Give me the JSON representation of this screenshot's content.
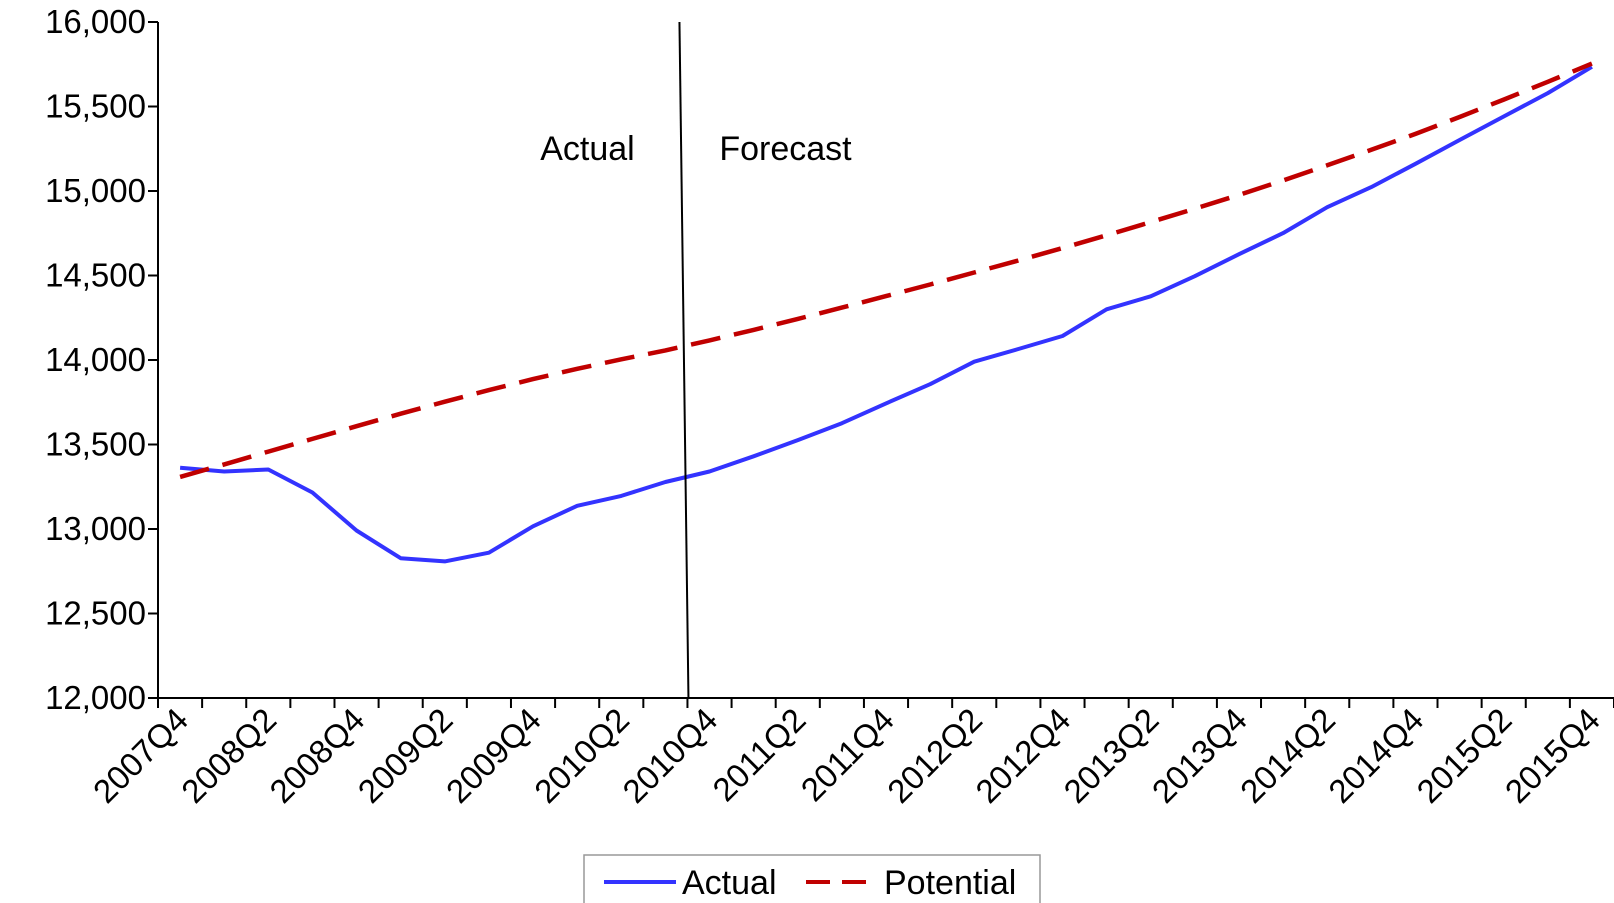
{
  "chart_data": {
    "type": "line",
    "title": "",
    "xlabel": "",
    "ylabel": "",
    "ylim": [
      12000,
      16000
    ],
    "yticks": [
      12000,
      12500,
      13000,
      13500,
      14000,
      14500,
      15000,
      15500,
      16000
    ],
    "ytick_labels": [
      "12,000",
      "12,500",
      "13,000",
      "13,500",
      "14,000",
      "14,500",
      "15,000",
      "15,500",
      "16,000"
    ],
    "x": [
      "2007Q4",
      "2008Q1",
      "2008Q2",
      "2008Q3",
      "2008Q4",
      "2009Q1",
      "2009Q2",
      "2009Q3",
      "2009Q4",
      "2010Q1",
      "2010Q2",
      "2010Q3",
      "2010Q4",
      "2011Q1",
      "2011Q2",
      "2011Q3",
      "2011Q4",
      "2012Q1",
      "2012Q2",
      "2012Q3",
      "2012Q4",
      "2013Q1",
      "2013Q2",
      "2013Q3",
      "2013Q4",
      "2014Q1",
      "2014Q2",
      "2014Q3",
      "2014Q4",
      "2015Q1",
      "2015Q2",
      "2015Q3",
      "2015Q4"
    ],
    "xtick_labels": [
      "2007Q4",
      "2008Q2",
      "2008Q4",
      "2009Q2",
      "2009Q4",
      "2010Q2",
      "2010Q4",
      "2011Q2",
      "2011Q4",
      "2012Q2",
      "2012Q4",
      "2013Q2",
      "2013Q4",
      "2014Q2",
      "2014Q4",
      "2015Q2",
      "2015Q4"
    ],
    "series": [
      {
        "name": "Actual",
        "color": "#3333ff",
        "style": "solid",
        "values": [
          13363,
          13340,
          13352,
          13216,
          12991,
          12827,
          12808,
          12860,
          13016,
          13137,
          13196,
          13278,
          13340,
          13430,
          13526,
          13626,
          13743,
          13857,
          13990,
          14065,
          14142,
          14300,
          14377,
          14496,
          14626,
          14751,
          14904,
          15023,
          15161,
          15302,
          15441,
          15579,
          15735
        ]
      },
      {
        "name": "Potential",
        "color": "#c00000",
        "style": "dashed",
        "values": [
          13308,
          13382,
          13458,
          13533,
          13608,
          13682,
          13753,
          13822,
          13887,
          13948,
          14004,
          14057,
          14116,
          14178,
          14243,
          14310,
          14378,
          14447,
          14518,
          14589,
          14662,
          14738,
          14816,
          14895,
          14977,
          15063,
          15152,
          15244,
          15338,
          15438,
          15541,
          15646,
          15754
        ]
      }
    ],
    "divider_after": "2010Q3",
    "annotations": {
      "left": "Actual",
      "right": "Forecast"
    },
    "legend": {
      "position": "bottom"
    },
    "grid": false
  }
}
